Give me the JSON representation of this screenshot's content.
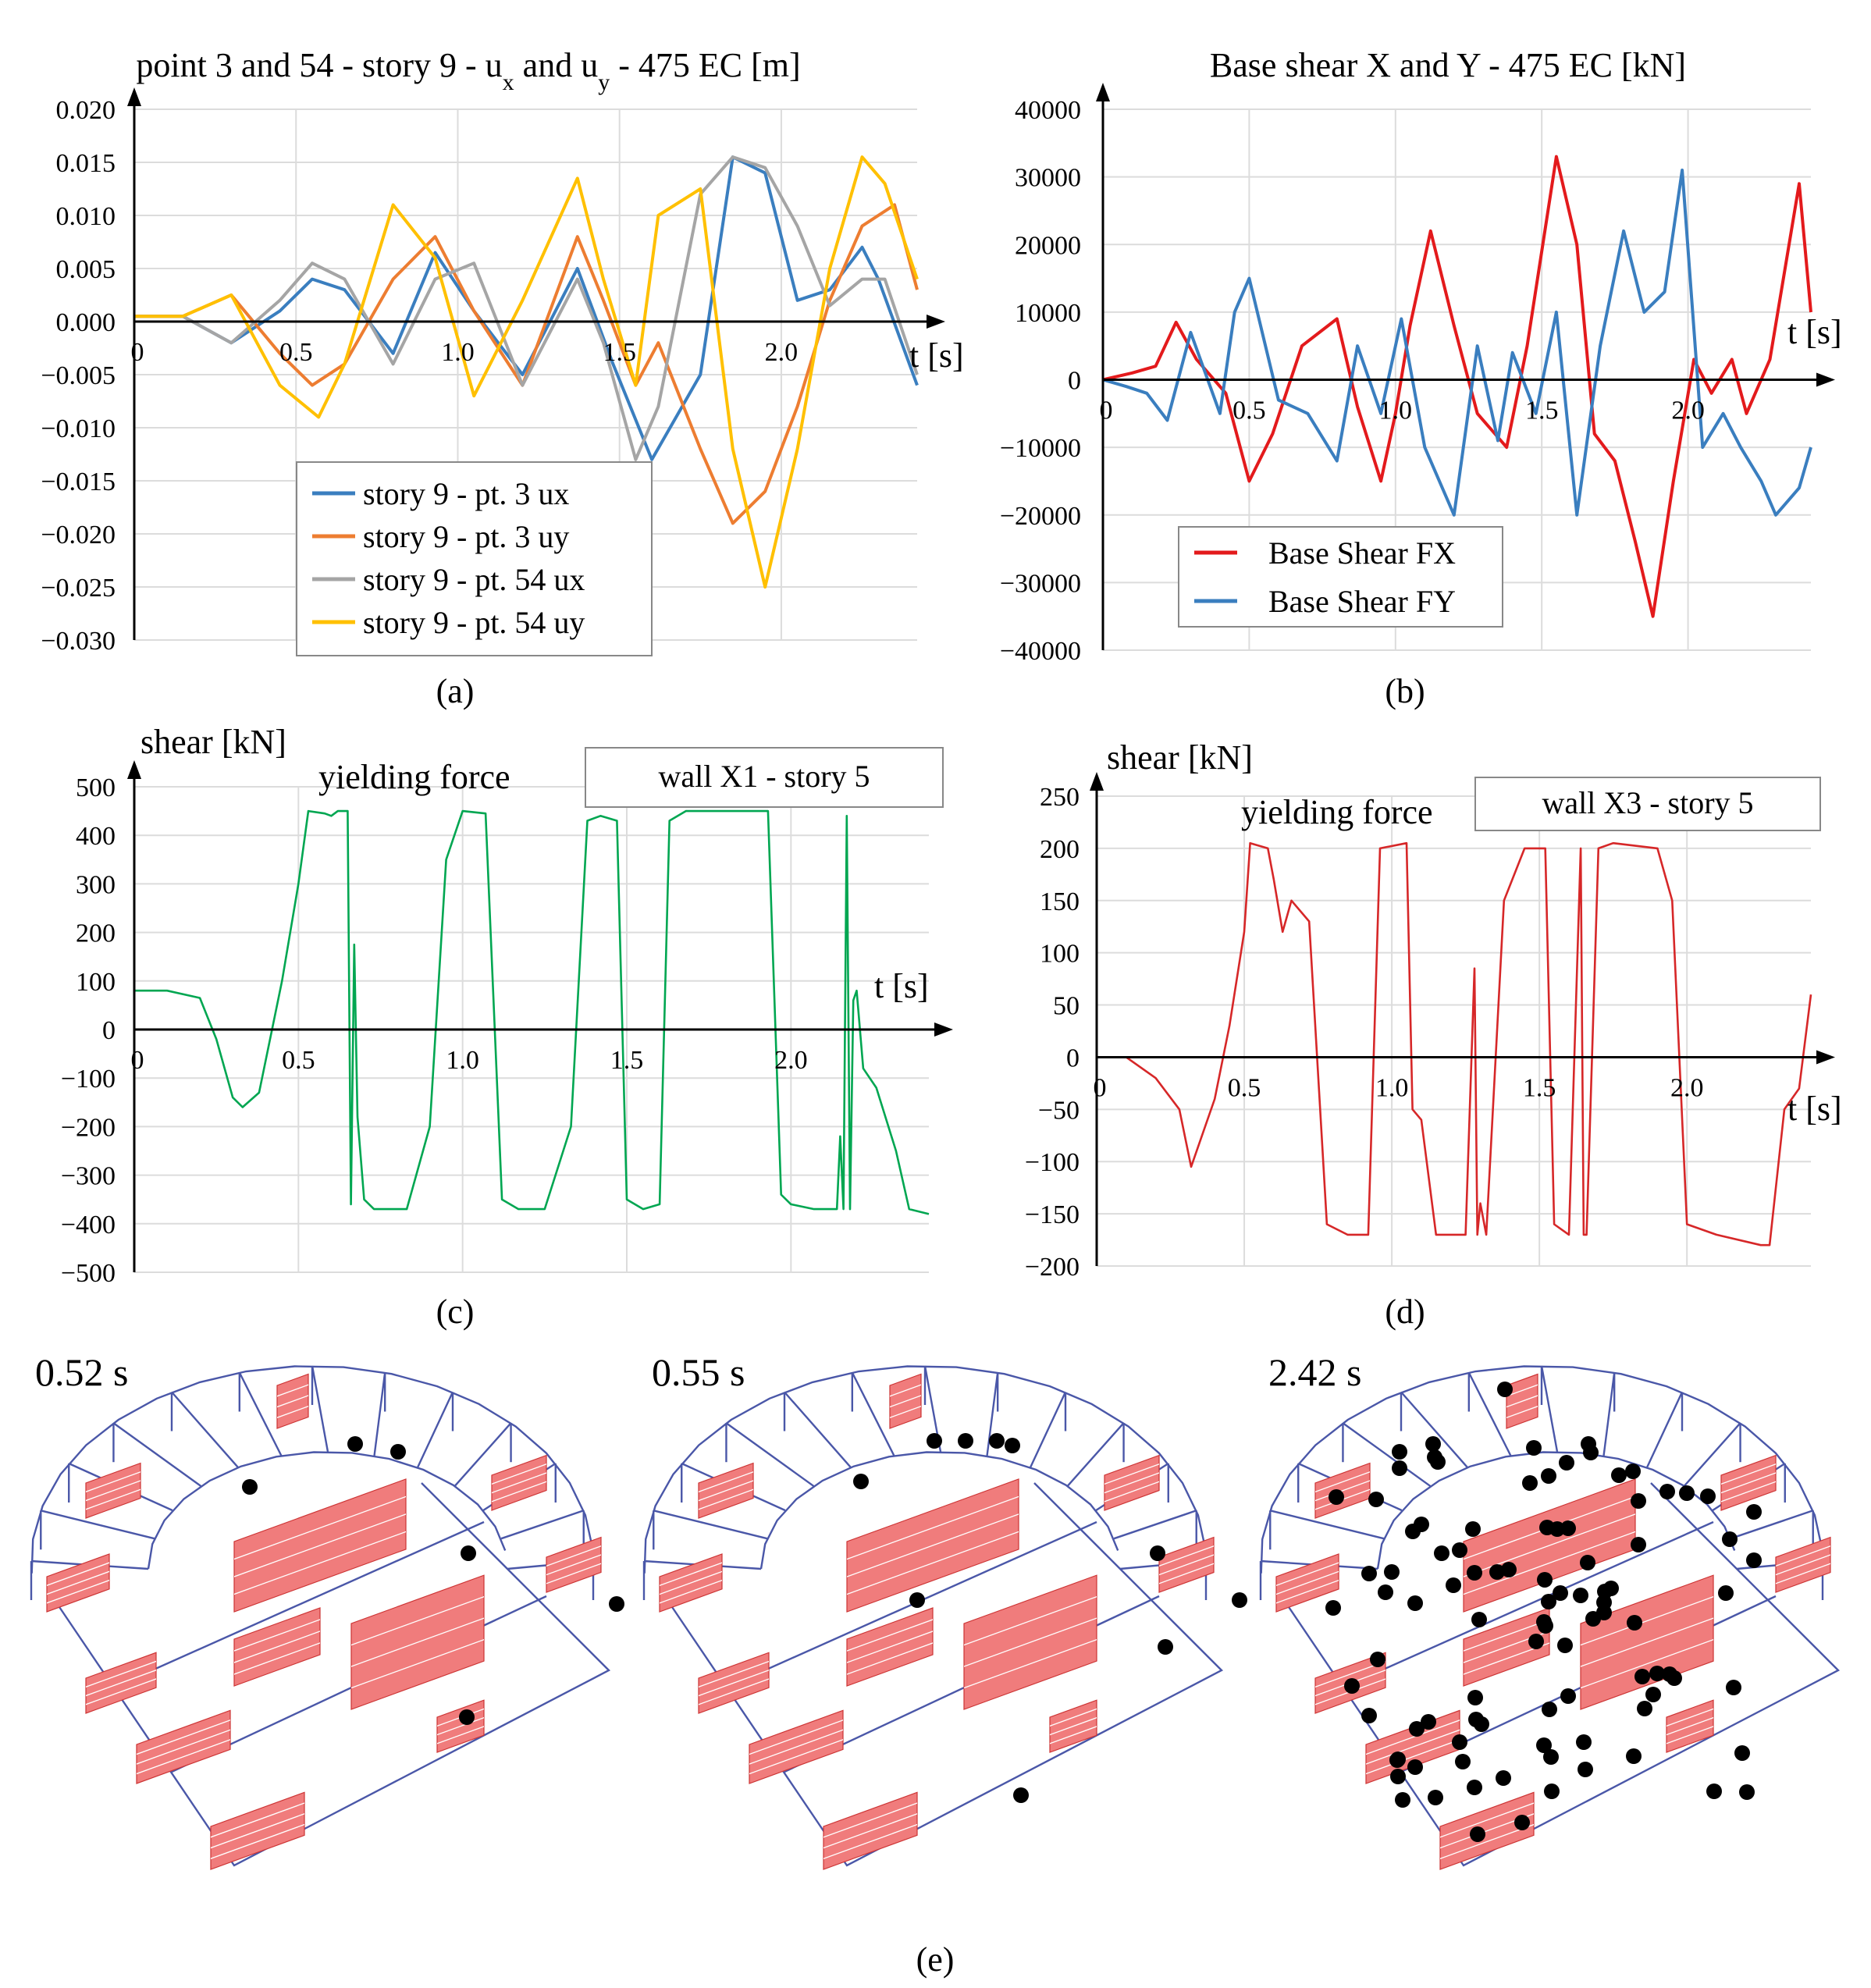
{
  "captions": {
    "a": "(a)",
    "b": "(b)",
    "c": "(c)",
    "d": "(d)",
    "e": "(e)"
  },
  "chart_data": [
    {
      "id": "a",
      "type": "line",
      "title": "point 3 and 54 - story 9 - u",
      "title_sub_x": "x",
      "title_mid": " and u",
      "title_sub_y": "y",
      "title_end": " - 475 EC [m]",
      "xlabel": "t [s]",
      "ylabel": "",
      "xlim": [
        0,
        2.42
      ],
      "ylim": [
        -0.03,
        0.02
      ],
      "xticks": [
        0.5,
        1.0,
        1.5,
        2.0
      ],
      "xtick_labels": [
        "0.5",
        "1.0",
        "1.5",
        "2.0"
      ],
      "xzero_label": "0",
      "yticks": [
        0.02,
        0.015,
        0.01,
        0.005,
        0.0,
        -0.005,
        -0.01,
        -0.015,
        -0.02,
        -0.025,
        -0.03
      ],
      "ytick_labels": [
        "0.020",
        "0.015",
        "0.010",
        "0.005",
        "0.000",
        "−0.005",
        "−0.010",
        "−0.015",
        "−0.020",
        "−0.025",
        "−0.030"
      ],
      "grid": true,
      "legend_position": "bottom-center",
      "series": [
        {
          "name": "story 9 - pt. 3 ux",
          "color": "#3a7ebf",
          "x": [
            0,
            0.15,
            0.3,
            0.45,
            0.55,
            0.65,
            0.8,
            0.93,
            1.05,
            1.2,
            1.37,
            1.48,
            1.6,
            1.75,
            1.85,
            1.95,
            2.0,
            2.05,
            2.15,
            2.25,
            2.3,
            2.42
          ],
          "y": [
            0.0005,
            0.0005,
            -0.002,
            0.001,
            0.004,
            0.003,
            -0.003,
            0.0065,
            0.001,
            -0.005,
            0.005,
            -0.004,
            -0.013,
            -0.005,
            0.0155,
            0.014,
            0.008,
            0.002,
            0.003,
            0.007,
            0.004,
            -0.006
          ]
        },
        {
          "name": "story 9 - pt. 3 uy",
          "color": "#ed7d31",
          "x": [
            0,
            0.15,
            0.3,
            0.45,
            0.55,
            0.65,
            0.8,
            0.93,
            1.05,
            1.2,
            1.37,
            1.45,
            1.55,
            1.62,
            1.75,
            1.85,
            1.95,
            2.05,
            2.15,
            2.25,
            2.35,
            2.42
          ],
          "y": [
            0.0005,
            0.0005,
            0.0025,
            -0.003,
            -0.006,
            -0.004,
            0.004,
            0.008,
            0.001,
            -0.006,
            0.008,
            0.002,
            -0.006,
            -0.002,
            -0.012,
            -0.019,
            -0.016,
            -0.008,
            0.002,
            0.009,
            0.011,
            0.003
          ]
        },
        {
          "name": "story 9 - pt. 54 ux",
          "color": "#a5a5a5",
          "x": [
            0,
            0.15,
            0.3,
            0.45,
            0.55,
            0.65,
            0.8,
            0.93,
            1.05,
            1.2,
            1.37,
            1.45,
            1.55,
            1.62,
            1.75,
            1.85,
            1.95,
            2.05,
            2.15,
            2.25,
            2.32,
            2.42
          ],
          "y": [
            0.0005,
            0.0005,
            -0.002,
            0.002,
            0.0055,
            0.004,
            -0.004,
            0.004,
            0.0055,
            -0.006,
            0.004,
            -0.002,
            -0.013,
            -0.008,
            0.012,
            0.0155,
            0.0145,
            0.009,
            0.0015,
            0.004,
            0.004,
            -0.005
          ]
        },
        {
          "name": "story 9 - pt. 54 uy",
          "color": "#ffc000",
          "x": [
            0,
            0.15,
            0.3,
            0.45,
            0.57,
            0.65,
            0.8,
            0.93,
            1.05,
            1.2,
            1.37,
            1.45,
            1.55,
            1.62,
            1.75,
            1.85,
            1.95,
            2.05,
            2.15,
            2.25,
            2.32,
            2.42
          ],
          "y": [
            0.0005,
            0.0005,
            0.0025,
            -0.006,
            -0.009,
            -0.004,
            0.011,
            0.006,
            -0.007,
            0.002,
            0.0135,
            0.004,
            -0.006,
            0.01,
            0.0125,
            -0.012,
            -0.025,
            -0.012,
            0.005,
            0.0155,
            0.013,
            0.004
          ]
        }
      ]
    },
    {
      "id": "b",
      "type": "line",
      "title": "Base shear X and Y - 475 EC  [kN]",
      "xlabel": "t [s]",
      "ylabel": "",
      "xlim": [
        0,
        2.42
      ],
      "ylim": [
        -40000,
        40000
      ],
      "xticks": [
        0.5,
        1.0,
        1.5,
        2.0
      ],
      "xtick_labels": [
        "0.5",
        "1.0",
        "1.5",
        "2.0"
      ],
      "xzero_label": "0",
      "yticks": [
        40000,
        30000,
        20000,
        10000,
        0,
        -10000,
        -20000,
        -30000,
        -40000
      ],
      "ytick_labels": [
        "40000",
        "30000",
        "20000",
        "10000",
        "0",
        "−10000",
        "−20000",
        "−30000",
        "−40000"
      ],
      "grid": true,
      "legend_position": "bottom-left",
      "series": [
        {
          "name": "Base Shear FX",
          "color": "#e31a1c",
          "x": [
            0,
            0.1,
            0.18,
            0.25,
            0.32,
            0.42,
            0.5,
            0.58,
            0.68,
            0.8,
            0.87,
            0.95,
            1.0,
            1.05,
            1.12,
            1.2,
            1.28,
            1.38,
            1.45,
            1.55,
            1.62,
            1.68,
            1.75,
            1.82,
            1.88,
            1.95,
            2.02,
            2.08,
            2.15,
            2.2,
            2.28,
            2.38,
            2.42
          ],
          "y": [
            0,
            1000,
            2000,
            8500,
            3000,
            -2000,
            -15000,
            -8000,
            5000,
            9000,
            -4000,
            -15000,
            -5000,
            8000,
            22000,
            8000,
            -5000,
            -10000,
            5000,
            33000,
            20000,
            -8000,
            -12000,
            -24000,
            -35000,
            -15000,
            3000,
            -2000,
            3000,
            -5000,
            3000,
            29000,
            10000
          ]
        },
        {
          "name": "Base Shear FY",
          "color": "#3a7ebf",
          "x": [
            0,
            0.08,
            0.15,
            0.22,
            0.3,
            0.4,
            0.45,
            0.5,
            0.6,
            0.7,
            0.8,
            0.87,
            0.95,
            1.02,
            1.1,
            1.2,
            1.28,
            1.35,
            1.4,
            1.48,
            1.55,
            1.62,
            1.7,
            1.78,
            1.85,
            1.92,
            1.98,
            2.05,
            2.12,
            2.18,
            2.25,
            2.3,
            2.38,
            2.42
          ],
          "y": [
            0,
            -1000,
            -2000,
            -6000,
            7000,
            -5000,
            10000,
            15000,
            -3000,
            -5000,
            -12000,
            5000,
            -5000,
            9000,
            -10000,
            -20000,
            5000,
            -9000,
            4000,
            -5000,
            10000,
            -20000,
            5000,
            22000,
            10000,
            13000,
            31000,
            -10000,
            -5000,
            -10000,
            -15000,
            -20000,
            -16000,
            -10000
          ]
        }
      ]
    },
    {
      "id": "c",
      "type": "line",
      "ylabel": "shear [kN]",
      "xlabel": "t [s]",
      "annotation": "yielding force",
      "legend_box": "wall X1 - story 5",
      "xlim": [
        0,
        2.42
      ],
      "ylim": [
        -500,
        500
      ],
      "xticks": [
        0.5,
        1.0,
        1.5,
        2.0
      ],
      "xtick_labels": [
        "0.5",
        "1.0",
        "1.5",
        "2.0"
      ],
      "xzero_label": "0",
      "yticks": [
        500,
        400,
        300,
        200,
        100,
        0,
        -100,
        -200,
        -300,
        -400,
        -500
      ],
      "ytick_labels": [
        "500",
        "400",
        "300",
        "200",
        "100",
        "0",
        "−100",
        "−200",
        "−300",
        "−400",
        "−500"
      ],
      "grid": true,
      "series": [
        {
          "name": "wall X1 - story 5",
          "color": "#00a651",
          "x": [
            0,
            0.1,
            0.2,
            0.25,
            0.3,
            0.33,
            0.38,
            0.45,
            0.5,
            0.53,
            0.58,
            0.6,
            0.62,
            0.65,
            0.66,
            0.67,
            0.68,
            0.7,
            0.73,
            0.83,
            0.9,
            0.95,
            1.0,
            1.07,
            1.12,
            1.17,
            1.25,
            1.33,
            1.38,
            1.42,
            1.47,
            1.5,
            1.55,
            1.6,
            1.63,
            1.68,
            1.75,
            1.85,
            1.93,
            1.97,
            2.0,
            2.07,
            2.14,
            2.15,
            2.16,
            2.17,
            2.18,
            2.19,
            2.2,
            2.22,
            2.26,
            2.32,
            2.36,
            2.42
          ],
          "y": [
            80,
            80,
            65,
            -20,
            -140,
            -160,
            -130,
            100,
            300,
            450,
            445,
            440,
            450,
            450,
            -360,
            175,
            -180,
            -350,
            -370,
            -370,
            -200,
            350,
            450,
            445,
            -350,
            -370,
            -370,
            -200,
            430,
            440,
            430,
            -350,
            -370,
            -360,
            430,
            450,
            450,
            450,
            450,
            -340,
            -360,
            -370,
            -370,
            -220,
            -370,
            440,
            -370,
            60,
            80,
            -80,
            -120,
            -250,
            -370,
            -380
          ]
        }
      ]
    },
    {
      "id": "d",
      "type": "line",
      "ylabel": "shear [kN]",
      "xlabel": "t [s]",
      "annotation": "yielding force",
      "legend_box": "wall X3 - story 5",
      "xlim": [
        0,
        2.42
      ],
      "ylim": [
        -200,
        250
      ],
      "xticks": [
        0.5,
        1.0,
        1.5,
        2.0
      ],
      "xtick_labels": [
        "0.5",
        "1.0",
        "1.5",
        "2.0"
      ],
      "xzero_label": "0",
      "yticks": [
        250,
        200,
        150,
        100,
        50,
        0,
        -50,
        -100,
        -150,
        -200
      ],
      "ytick_labels": [
        "250",
        "200",
        "150",
        "100",
        "50",
        "0",
        "−50",
        "−100",
        "−150",
        "−200"
      ],
      "grid": true,
      "series": [
        {
          "name": "wall X3 - story 5",
          "color": "#d62728",
          "x": [
            0,
            0.1,
            0.2,
            0.28,
            0.32,
            0.4,
            0.45,
            0.5,
            0.52,
            0.58,
            0.6,
            0.63,
            0.66,
            0.72,
            0.78,
            0.85,
            0.92,
            0.96,
            1.05,
            1.07,
            1.1,
            1.15,
            1.25,
            1.28,
            1.29,
            1.3,
            1.32,
            1.38,
            1.45,
            1.52,
            1.55,
            1.6,
            1.64,
            1.65,
            1.66,
            1.7,
            1.75,
            1.9,
            1.95,
            2.0,
            2.1,
            2.25,
            2.28,
            2.33,
            2.38,
            2.42
          ],
          "y": [
            0,
            0,
            -20,
            -50,
            -105,
            -40,
            30,
            120,
            205,
            200,
            170,
            120,
            150,
            130,
            -160,
            -170,
            -170,
            200,
            205,
            -50,
            -60,
            -170,
            -170,
            85,
            -170,
            -140,
            -170,
            150,
            200,
            200,
            -160,
            -170,
            200,
            -170,
            -170,
            200,
            205,
            200,
            150,
            -160,
            -170,
            -180,
            -180,
            -50,
            -30,
            60
          ]
        }
      ]
    }
  ],
  "panel_e": {
    "times": [
      "0.52 s",
      "0.55 s",
      "2.42 s"
    ],
    "hinge_counts": [
      6,
      10,
      96
    ]
  }
}
